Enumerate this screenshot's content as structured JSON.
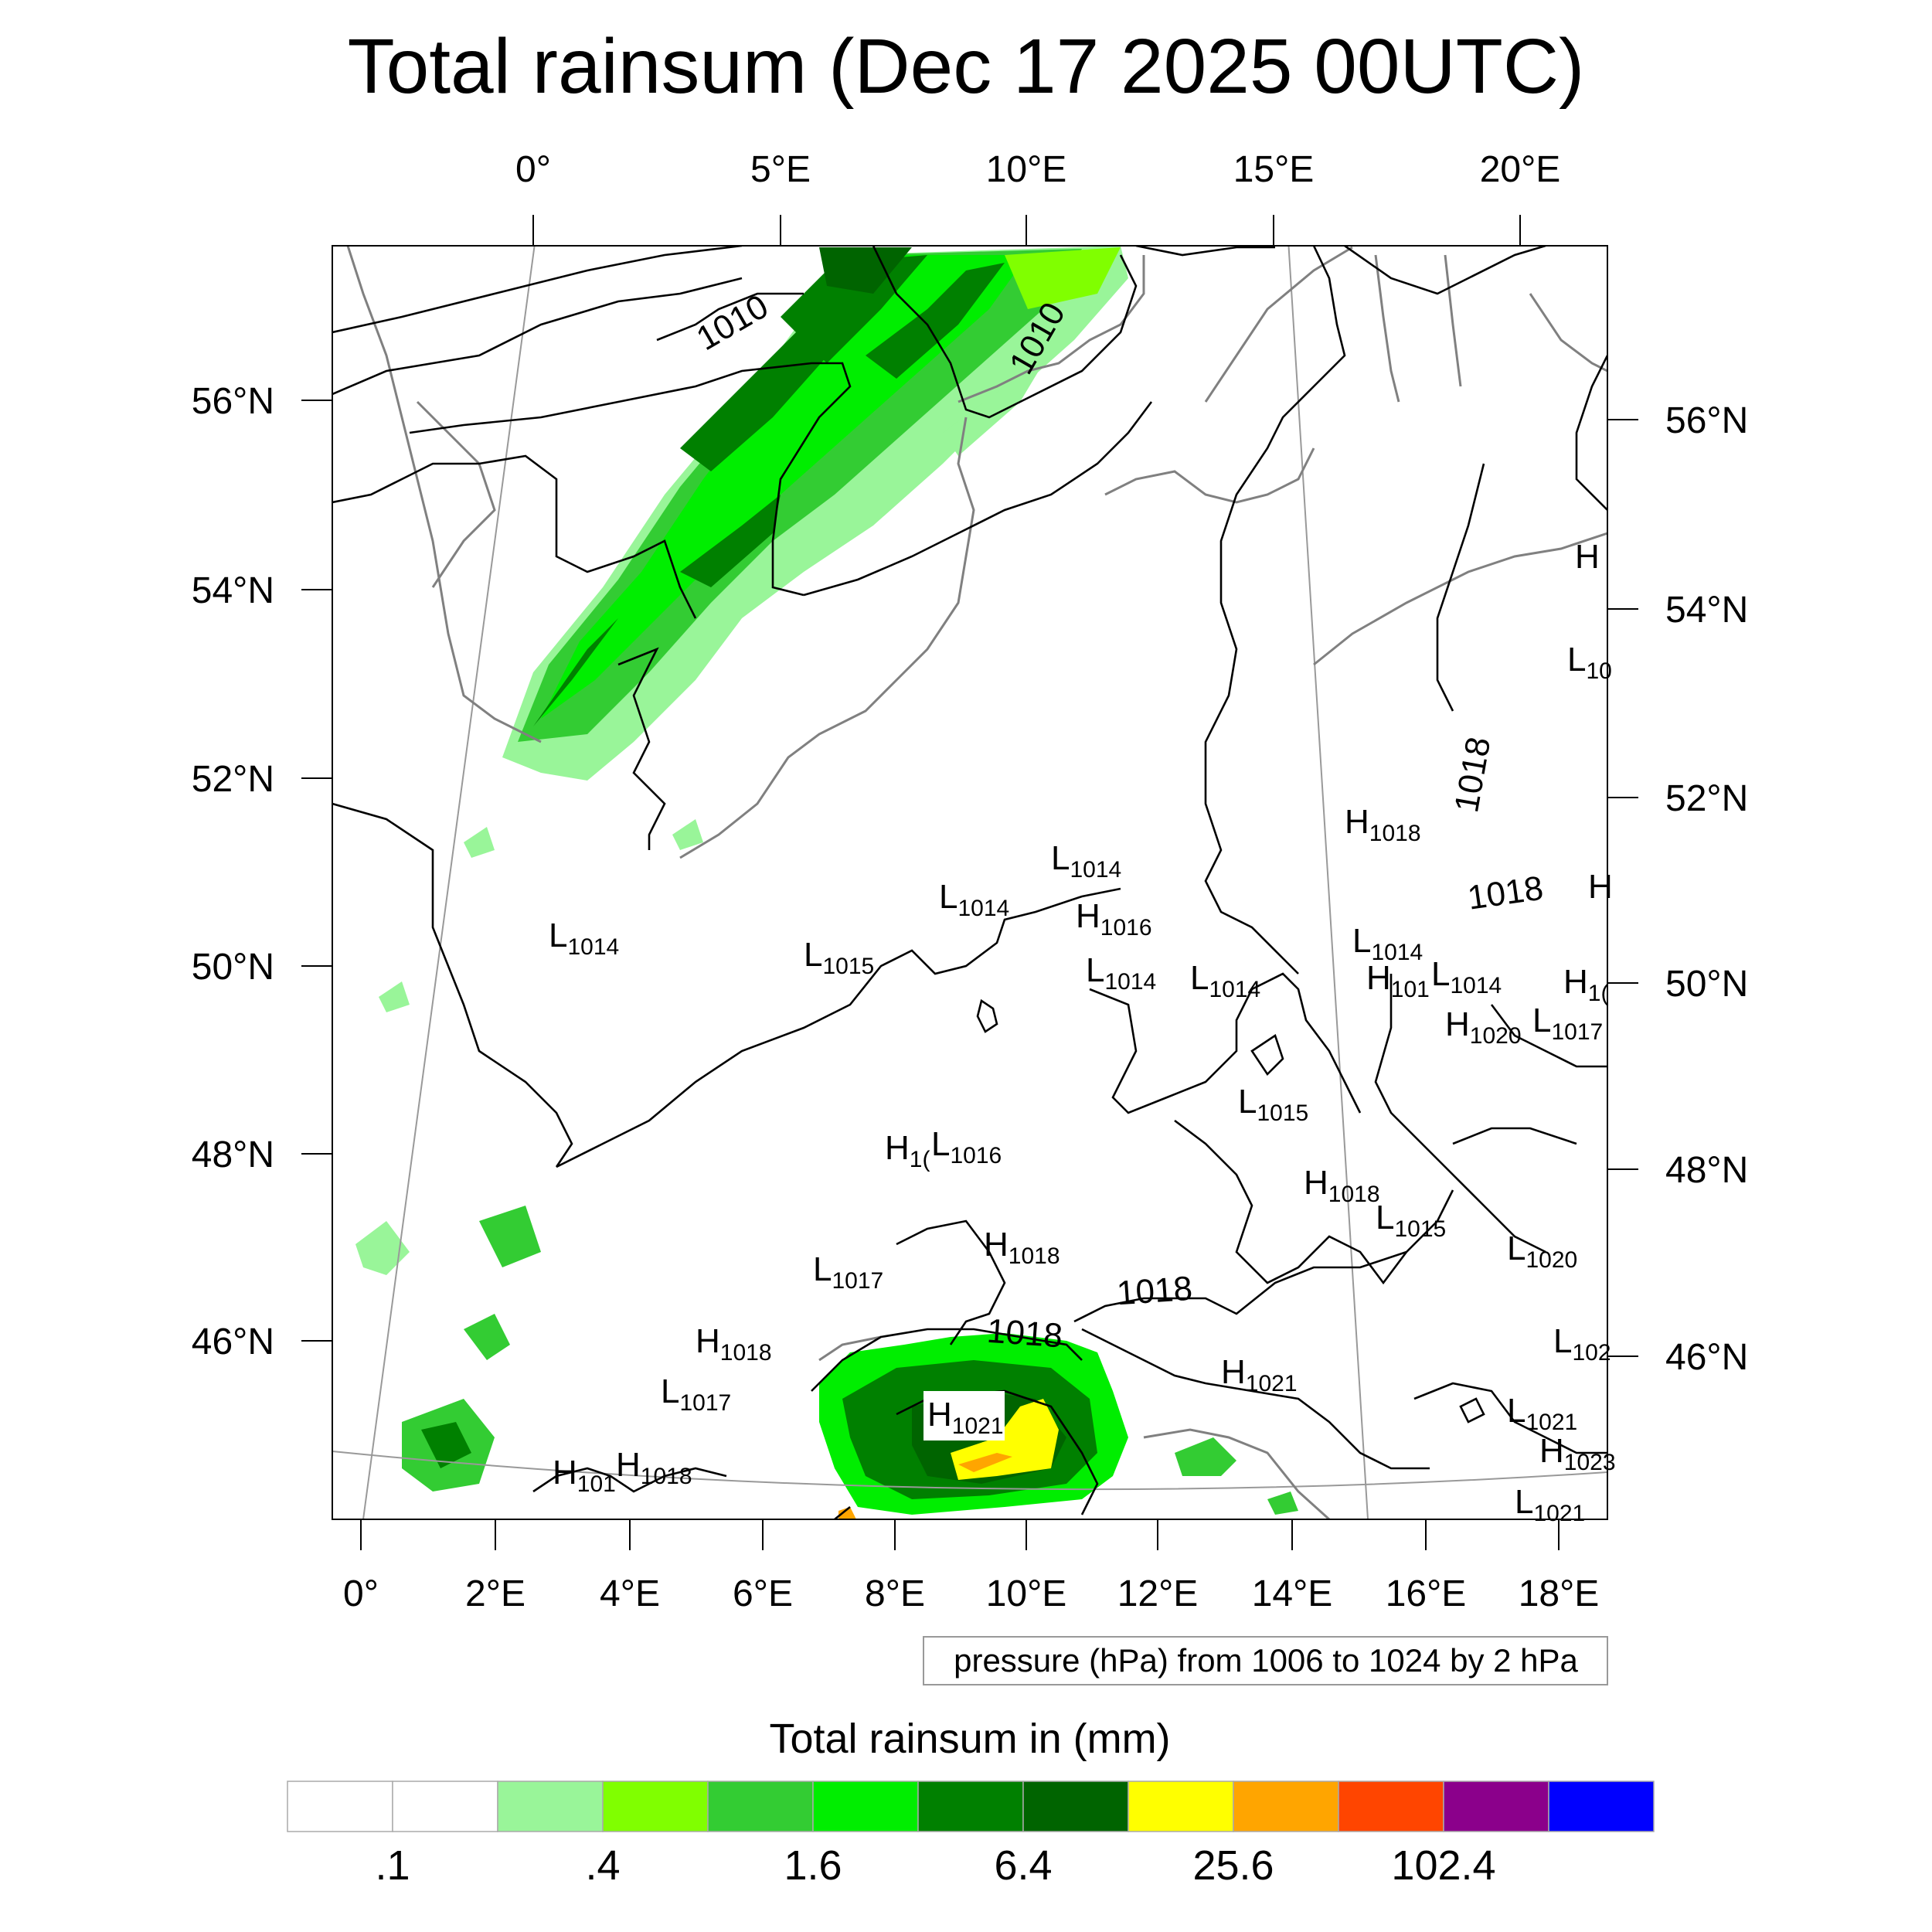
{
  "title": "Total rainsum (Dec 17 2025 00UTC)",
  "axes": {
    "top_lon_labels": [
      "0°",
      "5°E",
      "10°E",
      "15°E",
      "20°E"
    ],
    "bottom_lon_labels": [
      "0°",
      "2°E",
      "4°E",
      "6°E",
      "8°E",
      "10°E",
      "12°E",
      "14°E",
      "16°E",
      "18°E"
    ],
    "left_lat_labels": [
      "56°N",
      "54°N",
      "52°N",
      "50°N",
      "48°N",
      "46°N"
    ],
    "right_lat_labels": [
      "56°N",
      "54°N",
      "52°N",
      "50°N",
      "48°N",
      "46°N"
    ]
  },
  "pressure_info": "pressure (hPa) from 1006 to 1024 by 2 hPa",
  "isobar_labels": [
    {
      "text": "1010"
    },
    {
      "text": "1010"
    },
    {
      "text": "1018"
    },
    {
      "text": "1018"
    },
    {
      "text": "1018"
    },
    {
      "text": "1018"
    }
  ],
  "pressure_centers": [
    {
      "type": "H",
      "value": "1018"
    },
    {
      "type": "L",
      "value": "1014"
    },
    {
      "type": "L",
      "value": "1014"
    },
    {
      "type": "H",
      "value": "1016"
    },
    {
      "type": "L",
      "value": "1014"
    },
    {
      "type": "L",
      "value": "1015"
    },
    {
      "type": "L",
      "value": "1014"
    },
    {
      "type": "L",
      "value": "1014"
    },
    {
      "type": "L",
      "value": "1014"
    },
    {
      "type": "H",
      "value": "101"
    },
    {
      "type": "L",
      "value": "1014"
    },
    {
      "type": "H",
      "value": "1020"
    },
    {
      "type": "L",
      "value": "1017"
    },
    {
      "type": "L",
      "value": "1015"
    },
    {
      "type": "H",
      "value": "1("
    },
    {
      "type": "L",
      "value": "1016"
    },
    {
      "type": "H",
      "value": "1018"
    },
    {
      "type": "L",
      "value": "1015"
    },
    {
      "type": "H",
      "value": "1018"
    },
    {
      "type": "L",
      "value": "1017"
    },
    {
      "type": "L",
      "value": "1020"
    },
    {
      "type": "H",
      "value": "1018"
    },
    {
      "type": "L",
      "value": "1017"
    },
    {
      "type": "H",
      "value": "1021"
    },
    {
      "type": "H",
      "value": "1021"
    },
    {
      "type": "L",
      "value": "102"
    },
    {
      "type": "L",
      "value": "1021"
    },
    {
      "type": "H",
      "value": "1023"
    },
    {
      "type": "L",
      "value": "1021"
    },
    {
      "type": "H",
      "value": "101"
    },
    {
      "type": "H",
      "value": "1018"
    },
    {
      "type": "H",
      "value": ""
    },
    {
      "type": "L",
      "value": "10"
    },
    {
      "type": "H",
      "value": ""
    },
    {
      "type": "H",
      "value": "1("
    }
  ],
  "colorbar": {
    "title": "Total rainsum in (mm)",
    "tick_labels": [
      ".1",
      ".4",
      "1.6",
      "6.4",
      "25.6",
      "102.4"
    ],
    "colors": [
      "#ffffff",
      "#ffffff",
      "#99f599",
      "#80ff00",
      "#33cc33",
      "#00ee00",
      "#008000",
      "#006400",
      "#ffff00",
      "#ffa500",
      "#ff4500",
      "#8b008b",
      "#0000ff"
    ]
  }
}
